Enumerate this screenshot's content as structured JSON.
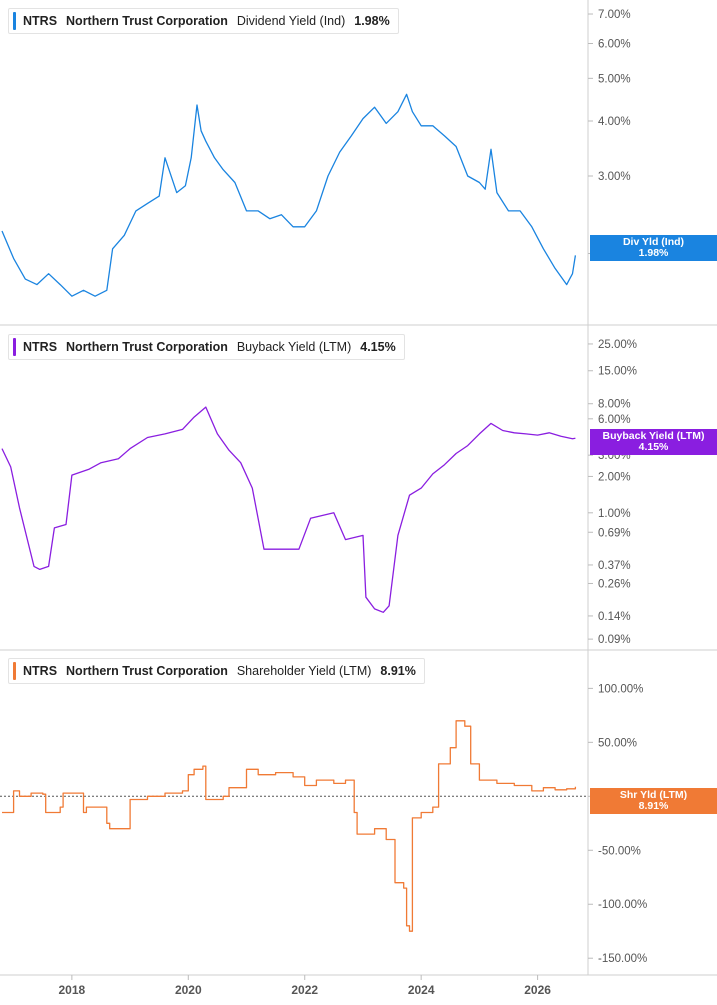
{
  "panels": [
    {
      "ticker": "NTRS",
      "company": "Northern Trust Corporation",
      "metric": "Dividend Yield (Ind)",
      "value": "1.98%",
      "color": "#1a84e0",
      "badge": {
        "line1": "Div Yld (Ind)",
        "line2": "1.98%"
      }
    },
    {
      "ticker": "NTRS",
      "company": "Northern Trust Corporation",
      "metric": "Buyback Yield (LTM)",
      "value": "4.15%",
      "color": "#8a1ee0",
      "badge": {
        "line1": "Buyback Yield (LTM)",
        "line2": "4.15%"
      }
    },
    {
      "ticker": "NTRS",
      "company": "Northern Trust Corporation",
      "metric": "Shareholder Yield (LTM)",
      "value": "8.91%",
      "color": "#f07a35",
      "badge": {
        "line1": "Shr Yld (LTM)",
        "line2": "8.91%"
      }
    }
  ],
  "chart_data": [
    {
      "type": "line",
      "title": "NTRS Northern Trust Corporation Dividend Yield (Ind) 1.98%",
      "scale": "log",
      "yticks": [
        {
          "v": 7,
          "label": "7.00%"
        },
        {
          "v": 6,
          "label": "6.00%"
        },
        {
          "v": 5,
          "label": "5.00%"
        },
        {
          "v": 4,
          "label": "4.00%"
        },
        {
          "v": 3,
          "label": "3.00%"
        },
        {
          "v": 2,
          "label": "2.00%"
        }
      ],
      "series": [
        {
          "x": [
            2016.8,
            2017.0,
            2017.2,
            2017.4,
            2017.6,
            2017.8,
            2018.0,
            2018.2,
            2018.4,
            2018.6,
            2018.7,
            2018.9,
            2019.1,
            2019.3,
            2019.5,
            2019.6,
            2019.8,
            2019.95,
            2020.05,
            2020.15,
            2020.22,
            2020.3,
            2020.45,
            2020.6,
            2020.8,
            2021.0,
            2021.2,
            2021.4,
            2021.6,
            2021.8,
            2022.0,
            2022.2,
            2022.4,
            2022.6,
            2022.8,
            2023.0,
            2023.2,
            2023.4,
            2023.6,
            2023.75,
            2023.85,
            2024.0,
            2024.2,
            2024.4,
            2024.6,
            2024.8,
            2025.0,
            2025.1,
            2025.2,
            2025.3,
            2025.5,
            2025.7,
            2025.9,
            2026.1,
            2026.3,
            2026.5,
            2026.55,
            2026.6,
            2026.65
          ],
          "y": [
            2.25,
            1.95,
            1.75,
            1.7,
            1.8,
            1.7,
            1.6,
            1.65,
            1.6,
            1.65,
            2.05,
            2.2,
            2.5,
            2.6,
            2.7,
            3.3,
            2.75,
            2.85,
            3.3,
            4.35,
            3.8,
            3.6,
            3.3,
            3.1,
            2.9,
            2.5,
            2.5,
            2.4,
            2.45,
            2.3,
            2.3,
            2.5,
            3.0,
            3.4,
            3.7,
            4.05,
            4.3,
            3.95,
            4.2,
            4.6,
            4.2,
            3.9,
            3.9,
            3.7,
            3.5,
            3.0,
            2.9,
            2.8,
            3.45,
            2.75,
            2.5,
            2.5,
            2.3,
            2.05,
            1.85,
            1.7,
            1.75,
            1.8,
            1.98
          ]
        }
      ]
    },
    {
      "type": "line",
      "title": "NTRS Northern Trust Corporation Buyback Yield (LTM) 4.15%",
      "scale": "log",
      "yticks": [
        {
          "v": 25,
          "label": "25.00%"
        },
        {
          "v": 15,
          "label": "15.00%"
        },
        {
          "v": 8,
          "label": "8.00%"
        },
        {
          "v": 6,
          "label": "6.00%"
        },
        {
          "v": 3,
          "label": "3.00%"
        },
        {
          "v": 2,
          "label": "2.00%"
        },
        {
          "v": 1,
          "label": "1.00%"
        },
        {
          "v": 0.69,
          "label": "0.69%"
        },
        {
          "v": 0.37,
          "label": "0.37%"
        },
        {
          "v": 0.26,
          "label": "0.26%"
        },
        {
          "v": 0.14,
          "label": "0.14%"
        },
        {
          "v": 0.09,
          "label": "0.09%"
        }
      ],
      "series": [
        {
          "x": [
            2016.8,
            2016.95,
            2017.1,
            2017.35,
            2017.45,
            2017.6,
            2017.7,
            2017.9,
            2018.0,
            2018.3,
            2018.5,
            2018.8,
            2019.0,
            2019.3,
            2019.6,
            2019.9,
            2020.1,
            2020.3,
            2020.5,
            2020.7,
            2020.9,
            2021.1,
            2021.3,
            2021.6,
            2021.9,
            2022.1,
            2022.3,
            2022.5,
            2022.7,
            2023.0,
            2023.05,
            2023.2,
            2023.35,
            2023.45,
            2023.6,
            2023.8,
            2024.0,
            2024.2,
            2024.4,
            2024.6,
            2024.8,
            2025.0,
            2025.2,
            2025.4,
            2025.6,
            2025.8,
            2026.0,
            2026.2,
            2026.4,
            2026.6,
            2026.65
          ],
          "y": [
            3.4,
            2.4,
            1.1,
            0.36,
            0.34,
            0.36,
            0.75,
            0.8,
            2.05,
            2.3,
            2.6,
            2.8,
            3.4,
            4.2,
            4.5,
            4.9,
            6.2,
            7.5,
            4.5,
            3.3,
            2.6,
            1.6,
            0.5,
            0.5,
            0.5,
            0.9,
            0.95,
            1.0,
            0.6,
            0.65,
            0.2,
            0.16,
            0.15,
            0.17,
            0.65,
            1.4,
            1.6,
            2.1,
            2.5,
            3.1,
            3.6,
            4.5,
            5.5,
            4.8,
            4.6,
            4.5,
            4.4,
            4.6,
            4.3,
            4.1,
            4.15
          ]
        }
      ]
    },
    {
      "type": "line",
      "title": "NTRS Northern Trust Corporation Shareholder Yield (LTM) 8.91%",
      "scale": "linear",
      "yticks": [
        {
          "v": 100,
          "label": "100.00%"
        },
        {
          "v": 50,
          "label": "50.00%"
        },
        {
          "v": 0,
          "label": "0.00%"
        },
        {
          "v": -50,
          "label": "-50.00%"
        },
        {
          "v": -100,
          "label": "-100.00%"
        },
        {
          "v": -150,
          "label": "-150.00%"
        }
      ],
      "zero_line": true,
      "series": [
        {
          "x": [
            2016.8,
            2017.0,
            2017.1,
            2017.3,
            2017.5,
            2017.55,
            2017.8,
            2017.85,
            2018.2,
            2018.25,
            2018.6,
            2018.65,
            2019.0,
            2019.3,
            2019.6,
            2019.9,
            2020.0,
            2020.1,
            2020.25,
            2020.3,
            2020.6,
            2020.7,
            2021.0,
            2021.2,
            2021.5,
            2021.8,
            2022.0,
            2022.2,
            2022.5,
            2022.7,
            2022.85,
            2022.9,
            2023.2,
            2023.4,
            2023.55,
            2023.7,
            2023.75,
            2023.8,
            2023.85,
            2024.0,
            2024.2,
            2024.3,
            2024.5,
            2024.6,
            2024.75,
            2024.85,
            2025.0,
            2025.3,
            2025.6,
            2025.9,
            2026.1,
            2026.3,
            2026.5,
            2026.65
          ],
          "y": [
            -15,
            5,
            0,
            3,
            2,
            -15,
            -10,
            3,
            -15,
            -10,
            -25,
            -30,
            -3,
            0,
            3,
            5,
            20,
            25,
            28,
            -3,
            0,
            8,
            25,
            20,
            22,
            18,
            10,
            15,
            12,
            15,
            -15,
            -35,
            -30,
            -40,
            -80,
            -85,
            -120,
            -125,
            -20,
            -15,
            -10,
            30,
            45,
            70,
            65,
            30,
            15,
            12,
            10,
            5,
            8,
            6,
            7,
            8.91
          ]
        }
      ]
    }
  ],
  "x_axis": {
    "ticks": [
      {
        "v": 2018,
        "label": "2018"
      },
      {
        "v": 2020,
        "label": "2020"
      },
      {
        "v": 2022,
        "label": "2022"
      },
      {
        "v": 2024,
        "label": "2024"
      },
      {
        "v": 2026,
        "label": "2026"
      }
    ]
  }
}
